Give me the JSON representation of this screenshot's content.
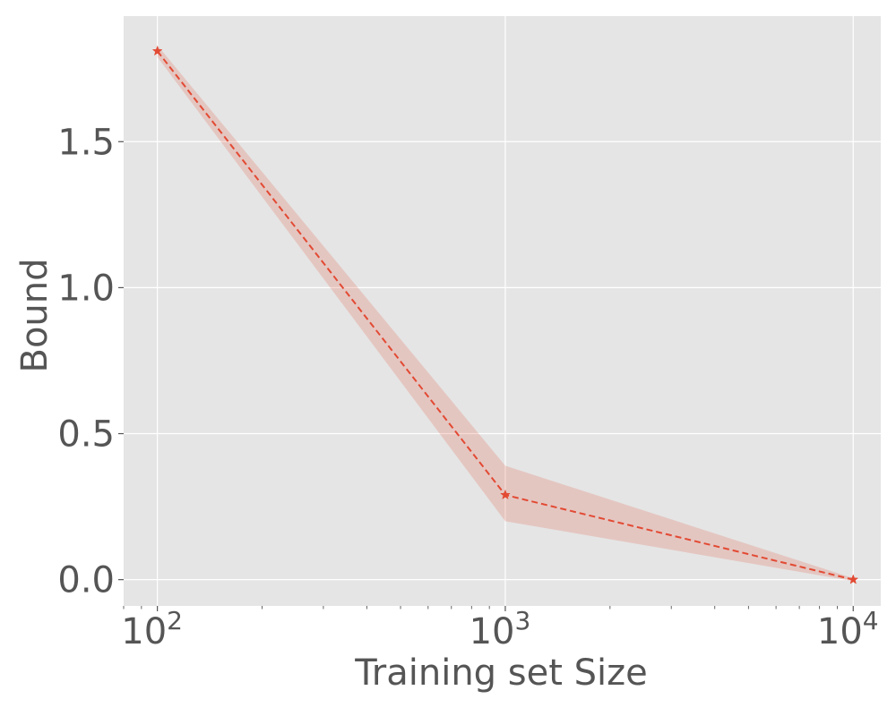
{
  "chart_data": {
    "type": "line",
    "xlabel": "Training set Size",
    "ylabel": "Bound",
    "x_scale": "log",
    "xlim": [
      80,
      12000
    ],
    "ylim": [
      -0.09,
      1.93
    ],
    "grid": true,
    "x_ticks": [
      {
        "value": 100,
        "base": "10",
        "exp": "2"
      },
      {
        "value": 1000,
        "base": "10",
        "exp": "3"
      },
      {
        "value": 10000,
        "base": "10",
        "exp": "4"
      }
    ],
    "y_ticks": [
      {
        "value": 0.0,
        "label": "0.0"
      },
      {
        "value": 0.5,
        "label": "0.5"
      },
      {
        "value": 1.0,
        "label": "1.0"
      },
      {
        "value": 1.5,
        "label": "1.5"
      }
    ],
    "series": [
      {
        "x": [
          100,
          1000,
          10000
        ],
        "y": [
          1.81,
          0.29,
          0.0
        ],
        "lower": [
          1.79,
          0.2,
          -0.005
        ],
        "upper": [
          1.83,
          0.39,
          0.005
        ],
        "marker": "star",
        "line_style": "dashed",
        "color": "#e24a33",
        "band_color": "#e24a33"
      }
    ],
    "plot_background": "#e5e5e5",
    "grid_color": "#ffffff"
  }
}
